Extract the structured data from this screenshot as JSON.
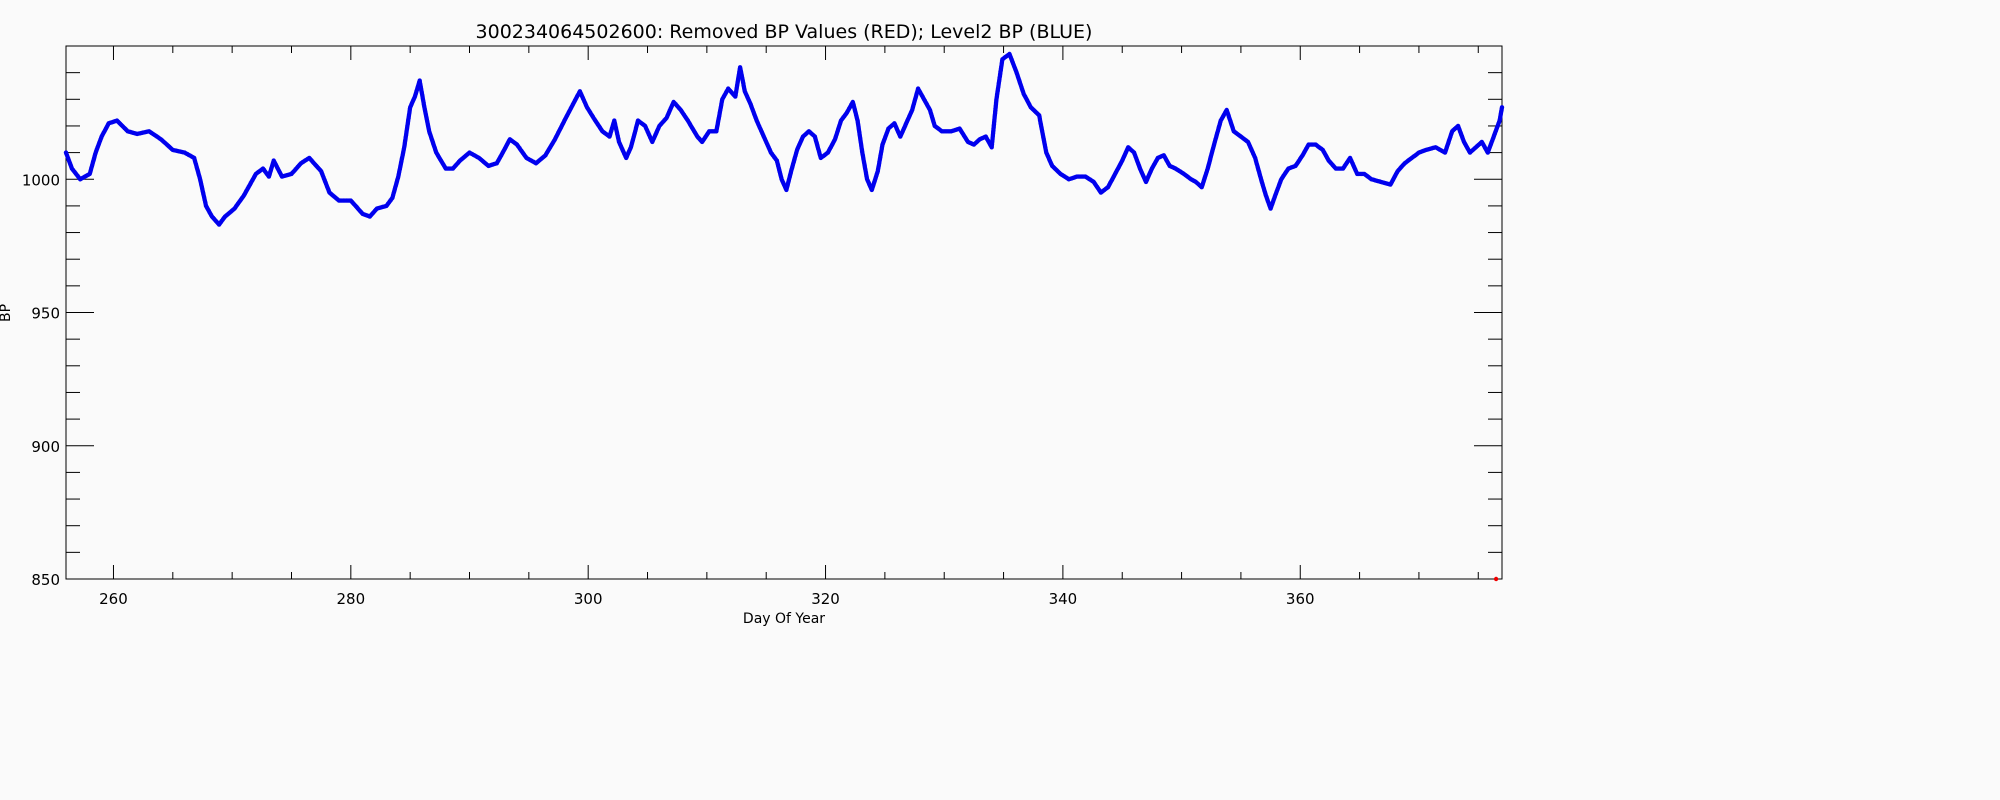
{
  "chart_data": {
    "type": "scatter",
    "title": "300234064502600: Removed BP Values (RED); Level2 BP (BLUE)",
    "xlabel": "Day Of Year",
    "ylabel": "BP",
    "xlim": [
      256,
      377
    ],
    "ylim": [
      850,
      1050
    ],
    "x_ticks": [
      "260",
      "280",
      "300",
      "320",
      "340",
      "360"
    ],
    "y_ticks": [
      "850",
      "900",
      "950",
      "1000"
    ],
    "grid": false,
    "series": [
      {
        "name": "Level2 BP (BLUE)",
        "color": "#0000ee",
        "points": [
          [
            256.0,
            1010
          ],
          [
            256.5,
            1004
          ],
          [
            257.2,
            1000
          ],
          [
            258.0,
            1002
          ],
          [
            258.5,
            1010
          ],
          [
            259.0,
            1016
          ],
          [
            259.6,
            1021
          ],
          [
            260.3,
            1022
          ],
          [
            261.2,
            1018
          ],
          [
            262.0,
            1017
          ],
          [
            263.0,
            1018
          ],
          [
            264.0,
            1015
          ],
          [
            265.0,
            1011
          ],
          [
            266.0,
            1010
          ],
          [
            266.8,
            1008
          ],
          [
            267.3,
            1000
          ],
          [
            267.8,
            990
          ],
          [
            268.3,
            986
          ],
          [
            268.9,
            983
          ],
          [
            269.4,
            986
          ],
          [
            270.2,
            989
          ],
          [
            271.0,
            994
          ],
          [
            272.0,
            1002
          ],
          [
            272.6,
            1004
          ],
          [
            273.1,
            1001
          ],
          [
            273.5,
            1007
          ],
          [
            274.2,
            1001
          ],
          [
            275.0,
            1002
          ],
          [
            275.8,
            1006
          ],
          [
            276.5,
            1008
          ],
          [
            277.5,
            1003
          ],
          [
            278.2,
            995
          ],
          [
            279.0,
            992
          ],
          [
            280.0,
            992
          ],
          [
            281.0,
            987
          ],
          [
            281.6,
            986
          ],
          [
            282.2,
            989
          ],
          [
            283.0,
            990
          ],
          [
            283.5,
            993
          ],
          [
            284.0,
            1001
          ],
          [
            284.5,
            1012
          ],
          [
            285.0,
            1027
          ],
          [
            285.4,
            1031
          ],
          [
            285.8,
            1037
          ],
          [
            286.2,
            1027
          ],
          [
            286.6,
            1018
          ],
          [
            287.2,
            1010
          ],
          [
            288.0,
            1004
          ],
          [
            288.6,
            1004
          ],
          [
            289.2,
            1007
          ],
          [
            290.0,
            1010
          ],
          [
            290.8,
            1008
          ],
          [
            291.6,
            1005
          ],
          [
            292.3,
            1006
          ],
          [
            292.8,
            1010
          ],
          [
            293.4,
            1015
          ],
          [
            294.0,
            1013
          ],
          [
            294.8,
            1008
          ],
          [
            295.6,
            1006
          ],
          [
            296.4,
            1009
          ],
          [
            297.2,
            1015
          ],
          [
            298.0,
            1022
          ],
          [
            298.7,
            1028
          ],
          [
            299.3,
            1033
          ],
          [
            299.9,
            1027
          ],
          [
            300.6,
            1022
          ],
          [
            301.2,
            1018
          ],
          [
            301.8,
            1016
          ],
          [
            302.2,
            1022
          ],
          [
            302.6,
            1014
          ],
          [
            303.2,
            1008
          ],
          [
            303.6,
            1012
          ],
          [
            304.2,
            1022
          ],
          [
            304.8,
            1020
          ],
          [
            305.4,
            1014
          ],
          [
            306.0,
            1020
          ],
          [
            306.6,
            1023
          ],
          [
            307.2,
            1029
          ],
          [
            307.8,
            1026
          ],
          [
            308.4,
            1022
          ],
          [
            309.2,
            1016
          ],
          [
            309.6,
            1014
          ],
          [
            310.2,
            1018
          ],
          [
            310.8,
            1018
          ],
          [
            311.3,
            1030
          ],
          [
            311.8,
            1034
          ],
          [
            312.4,
            1031
          ],
          [
            312.8,
            1042
          ],
          [
            313.2,
            1033
          ],
          [
            313.7,
            1028
          ],
          [
            314.2,
            1022
          ],
          [
            314.8,
            1016
          ],
          [
            315.4,
            1010
          ],
          [
            315.9,
            1007
          ],
          [
            316.3,
            1000
          ],
          [
            316.7,
            996
          ],
          [
            317.1,
            1003
          ],
          [
            317.6,
            1011
          ],
          [
            318.1,
            1016
          ],
          [
            318.6,
            1018
          ],
          [
            319.1,
            1016
          ],
          [
            319.6,
            1008
          ],
          [
            320.2,
            1010
          ],
          [
            320.8,
            1015
          ],
          [
            321.3,
            1022
          ],
          [
            321.8,
            1025
          ],
          [
            322.3,
            1029
          ],
          [
            322.7,
            1022
          ],
          [
            323.1,
            1010
          ],
          [
            323.5,
            1000
          ],
          [
            323.9,
            996
          ],
          [
            324.4,
            1003
          ],
          [
            324.8,
            1013
          ],
          [
            325.3,
            1019
          ],
          [
            325.8,
            1021
          ],
          [
            326.3,
            1016
          ],
          [
            326.8,
            1021
          ],
          [
            327.3,
            1026
          ],
          [
            327.8,
            1034
          ],
          [
            328.3,
            1030
          ],
          [
            328.8,
            1026
          ],
          [
            329.2,
            1020
          ],
          [
            329.8,
            1018
          ],
          [
            330.6,
            1018
          ],
          [
            331.3,
            1019
          ],
          [
            332.0,
            1014
          ],
          [
            332.5,
            1013
          ],
          [
            333.0,
            1015
          ],
          [
            333.5,
            1016
          ],
          [
            334.0,
            1012
          ],
          [
            334.4,
            1030
          ],
          [
            334.9,
            1045
          ],
          [
            335.5,
            1047
          ],
          [
            336.1,
            1040
          ],
          [
            336.7,
            1032
          ],
          [
            337.3,
            1027
          ],
          [
            338.0,
            1024
          ],
          [
            338.6,
            1010
          ],
          [
            339.1,
            1005
          ],
          [
            339.8,
            1002
          ],
          [
            340.5,
            1000
          ],
          [
            341.2,
            1001
          ],
          [
            341.9,
            1001
          ],
          [
            342.6,
            999
          ],
          [
            343.2,
            995
          ],
          [
            343.8,
            997
          ],
          [
            344.4,
            1002
          ],
          [
            345.0,
            1007
          ],
          [
            345.5,
            1012
          ],
          [
            346.0,
            1010
          ],
          [
            346.5,
            1004
          ],
          [
            347.0,
            999
          ],
          [
            347.5,
            1004
          ],
          [
            348.0,
            1008
          ],
          [
            348.5,
            1009
          ],
          [
            349.0,
            1005
          ],
          [
            349.5,
            1004
          ],
          [
            350.2,
            1002
          ],
          [
            350.8,
            1000
          ],
          [
            351.2,
            999
          ],
          [
            351.7,
            997
          ],
          [
            352.2,
            1004
          ],
          [
            352.8,
            1014
          ],
          [
            353.3,
            1022
          ],
          [
            353.8,
            1026
          ],
          [
            354.4,
            1018
          ],
          [
            355.0,
            1016
          ],
          [
            355.6,
            1014
          ],
          [
            356.2,
            1008
          ],
          [
            356.7,
            1000
          ],
          [
            357.1,
            994
          ],
          [
            357.5,
            989
          ],
          [
            357.9,
            994
          ],
          [
            358.4,
            1000
          ],
          [
            359.0,
            1004
          ],
          [
            359.6,
            1005
          ],
          [
            360.2,
            1009
          ],
          [
            360.7,
            1013
          ],
          [
            361.3,
            1013
          ],
          [
            361.9,
            1011
          ],
          [
            362.4,
            1007
          ],
          [
            363.0,
            1004
          ],
          [
            363.6,
            1004
          ],
          [
            364.2,
            1008
          ],
          [
            364.8,
            1002
          ],
          [
            365.4,
            1002
          ],
          [
            366.0,
            1000
          ],
          [
            366.8,
            999
          ],
          [
            367.6,
            998
          ],
          [
            368.2,
            1003
          ],
          [
            368.8,
            1006
          ],
          [
            369.4,
            1008
          ],
          [
            370.0,
            1010
          ],
          [
            370.6,
            1011
          ],
          [
            371.4,
            1012
          ],
          [
            372.2,
            1010
          ],
          [
            372.8,
            1018
          ],
          [
            373.3,
            1020
          ],
          [
            373.8,
            1014
          ],
          [
            374.3,
            1010
          ],
          [
            374.8,
            1012
          ],
          [
            375.3,
            1014
          ],
          [
            375.8,
            1010
          ],
          [
            376.3,
            1016
          ],
          [
            376.8,
            1022
          ],
          [
            377.0,
            1027
          ]
        ]
      },
      {
        "name": "Removed BP Values (RED)",
        "color": "#ee0000",
        "points": [
          [
            376.5,
            850
          ]
        ]
      }
    ]
  }
}
